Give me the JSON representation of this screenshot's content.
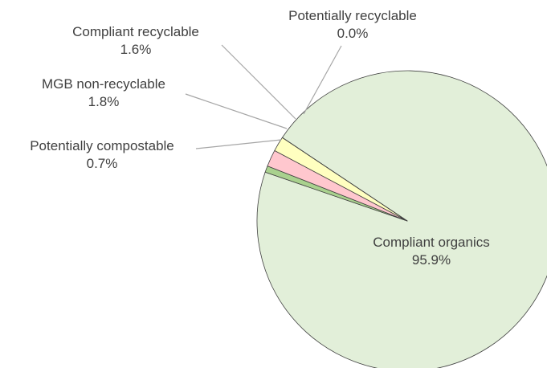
{
  "chart_data": {
    "type": "pie",
    "title": "",
    "slices": [
      {
        "label": "Compliant organics",
        "value": 95.9,
        "display": "95.9%",
        "color": "#e2efd9"
      },
      {
        "label": "Potentially compostable",
        "value": 0.7,
        "display": "0.7%",
        "color": "#a9d18e"
      },
      {
        "label": "MGB non-recyclable",
        "value": 1.8,
        "display": "1.8%",
        "color": "#ffc7ce"
      },
      {
        "label": "Compliant recyclable",
        "value": 1.6,
        "display": "1.6%",
        "color": "#ffffc0"
      },
      {
        "label": "Potentially recyclable",
        "value": 0.0,
        "display": "0.0%",
        "color": "#ddebf7"
      }
    ],
    "slice_outline_color": "#404040",
    "leader_line_color": "#a6a6a6",
    "label_color": "#404040"
  }
}
